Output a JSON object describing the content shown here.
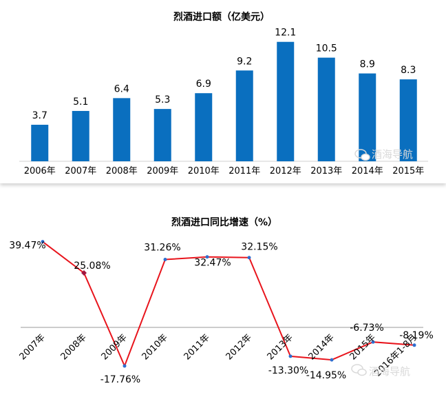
{
  "colors": {
    "bar": "#0a6fbf",
    "line": "#e8141c",
    "marker": "#2e6fd0",
    "marker_2008": "#a0163f",
    "watermark": "#d9d9d9"
  },
  "watermark": {
    "text": "酒海导航",
    "icon": "wechat-icon"
  },
  "chart_data": [
    {
      "type": "bar",
      "title": "烈酒进口额（亿美元）",
      "categories": [
        "2006年",
        "2007年",
        "2008年",
        "2009年",
        "2010年",
        "2011年",
        "2012年",
        "2013年",
        "2014年",
        "2015年"
      ],
      "values": [
        3.7,
        5.1,
        6.4,
        5.3,
        6.9,
        9.2,
        12.1,
        10.5,
        8.9,
        8.3
      ],
      "labels": [
        "3.7",
        "5.1",
        "6.4",
        "5.3",
        "6.9",
        "9.2",
        "12.1",
        "10.5",
        "8.9",
        "8.3"
      ],
      "ylim": [
        0,
        12.5
      ],
      "grid": false,
      "legend": "none"
    },
    {
      "type": "line",
      "title": "烈酒进口同比增速（%）",
      "categories": [
        "2007年",
        "2008年",
        "2009年",
        "2010年",
        "2011年",
        "2012年",
        "2013年",
        "2014年",
        "2015年",
        "2016年1-8月"
      ],
      "values": [
        39.47,
        25.08,
        -17.76,
        31.26,
        32.47,
        32.15,
        -13.3,
        -14.95,
        -6.73,
        -8.19
      ],
      "labels": [
        "39.47%",
        "25.08%",
        "-17.76%",
        "31.26%",
        "32.47%",
        "32.15%",
        "-13.30%",
        "-14.95%",
        "-6.73%",
        "-8.19%"
      ],
      "ylim": [
        -20,
        45
      ],
      "grid": false,
      "legend": "none"
    }
  ]
}
